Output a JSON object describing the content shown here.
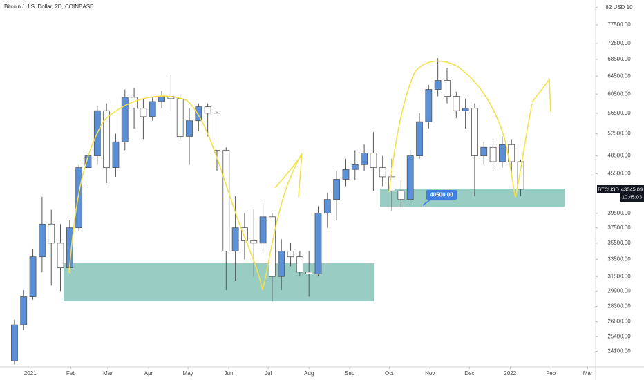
{
  "chart_data": {
    "type": "candlestick",
    "title": "Bitcoin / U.S. Dollar, 2D, COINBASE",
    "symbol": "BTCUSD",
    "last_price_label": "43045.09",
    "countdown": "10:45:03",
    "annotation": "40500.00",
    "log_scale": true,
    "up_color": "#5b8fd6",
    "down_color": "#ffffff",
    "xlim": [
      -23,
      430
    ],
    "xticks": [
      {
        "value": 0,
        "label": "2021"
      },
      {
        "value": 31,
        "label": "Feb"
      },
      {
        "value": 59,
        "label": "Mar"
      },
      {
        "value": 90,
        "label": "Apr"
      },
      {
        "value": 120,
        "label": "May"
      },
      {
        "value": 151,
        "label": "Jun"
      },
      {
        "value": 181,
        "label": "Jul"
      },
      {
        "value": 212,
        "label": "Aug"
      },
      {
        "value": 243,
        "label": "Sep"
      },
      {
        "value": 273,
        "label": "Oct"
      },
      {
        "value": 304,
        "label": "Nov"
      },
      {
        "value": 334,
        "label": "Dec"
      },
      {
        "value": 365,
        "label": "2022"
      },
      {
        "value": 396,
        "label": "Feb"
      },
      {
        "value": 424,
        "label": "Mar"
      }
    ],
    "ylim": [
      22800,
      84700
    ],
    "yticks": [
      {
        "value": 82500,
        "label": "82 USD 10"
      },
      {
        "value": 77500,
        "label": "77500.00"
      },
      {
        "value": 72500,
        "label": "72500.00"
      },
      {
        "value": 68500,
        "label": "68500.00"
      },
      {
        "value": 64500,
        "label": "64500.00"
      },
      {
        "value": 60500,
        "label": "60500.00"
      },
      {
        "value": 56500,
        "label": "56500.00"
      },
      {
        "value": 52500,
        "label": "52500.00"
      },
      {
        "value": 48500,
        "label": "48500.00"
      },
      {
        "value": 45500,
        "label": "45500.00"
      },
      {
        "value": 39500,
        "label": "39500.00"
      },
      {
        "value": 37500,
        "label": "37500.00"
      },
      {
        "value": 35500,
        "label": "35500.00"
      },
      {
        "value": 33500,
        "label": "33500.00"
      },
      {
        "value": 31500,
        "label": "31500.00"
      },
      {
        "value": 29900,
        "label": "29900.00"
      },
      {
        "value": 28300,
        "label": "28300.00"
      },
      {
        "value": 26800,
        "label": "26800.00"
      },
      {
        "value": 25400,
        "label": "25400.00"
      },
      {
        "value": 24100,
        "label": "24100.00"
      }
    ],
    "x": [
      -12,
      -5,
      2,
      9,
      16,
      23,
      30,
      37,
      44,
      51,
      58,
      65,
      72,
      79,
      86,
      93,
      100,
      107,
      114,
      121,
      128,
      135,
      142,
      149,
      156,
      163,
      170,
      177,
      184,
      191,
      198,
      205,
      212,
      219,
      226,
      233,
      240,
      247,
      254,
      261,
      268,
      275,
      282,
      289,
      296,
      303,
      310,
      317,
      324,
      331,
      338,
      345,
      352,
      359,
      366,
      373
    ],
    "open": [
      23300,
      26500,
      29300,
      33800,
      38000,
      35500,
      32500,
      37500,
      46500,
      48500,
      57000,
      46500,
      51000,
      59800,
      57500,
      55800,
      58900,
      60000,
      59500,
      52000,
      55000,
      57800,
      56500,
      49500,
      34500,
      37500,
      35800,
      35500,
      39000,
      31500,
      34500,
      33800,
      32000,
      31800,
      39500,
      41500,
      44600,
      46200,
      47000,
      49000,
      46500,
      45000,
      42800,
      41500,
      48500,
      54800,
      61500,
      63500,
      60000,
      57000,
      57500,
      48500,
      50000,
      47500,
      50500,
      47500
    ],
    "high": [
      27000,
      30000,
      34800,
      41900,
      40000,
      38000,
      38500,
      47000,
      49000,
      58000,
      58500,
      52500,
      61500,
      61800,
      59500,
      60000,
      61200,
      64800,
      60500,
      57500,
      58500,
      58500,
      56800,
      50000,
      42000,
      39500,
      40000,
      41000,
      39500,
      36000,
      35500,
      34500,
      34500,
      40500,
      42500,
      46000,
      48000,
      49500,
      50500,
      52800,
      48500,
      48000,
      44500,
      49500,
      56500,
      62500,
      68800,
      66500,
      61000,
      59500,
      58500,
      51000,
      51500,
      52000,
      51500,
      47800
    ],
    "low": [
      23000,
      26000,
      29000,
      32000,
      30500,
      29900,
      32000,
      37000,
      43500,
      47000,
      44000,
      45000,
      49500,
      53500,
      51500,
      55000,
      57500,
      57000,
      51500,
      47000,
      53000,
      52000,
      46000,
      30000,
      31000,
      33500,
      31500,
      34500,
      28800,
      30000,
      32700,
      31500,
      29300,
      31500,
      37500,
      38500,
      43500,
      44500,
      46000,
      42800,
      43500,
      39800,
      40500,
      41000,
      48000,
      53500,
      60000,
      58500,
      55500,
      53500,
      42000,
      47000,
      46000,
      46500,
      45500,
      42000
    ],
    "close": [
      26500,
      29300,
      33800,
      38000,
      35500,
      32500,
      37500,
      46500,
      48500,
      57000,
      46500,
      51000,
      59800,
      57500,
      55800,
      58900,
      60000,
      59500,
      52000,
      55000,
      57800,
      56500,
      49500,
      34500,
      37500,
      35800,
      35500,
      39000,
      31500,
      34500,
      33800,
      32000,
      31800,
      39500,
      41500,
      44600,
      46200,
      47000,
      49000,
      46500,
      45000,
      42800,
      41500,
      48500,
      54800,
      61500,
      63500,
      60000,
      57000,
      57500,
      48500,
      50000,
      47500,
      50500,
      47500,
      43045.09
    ]
  }
}
